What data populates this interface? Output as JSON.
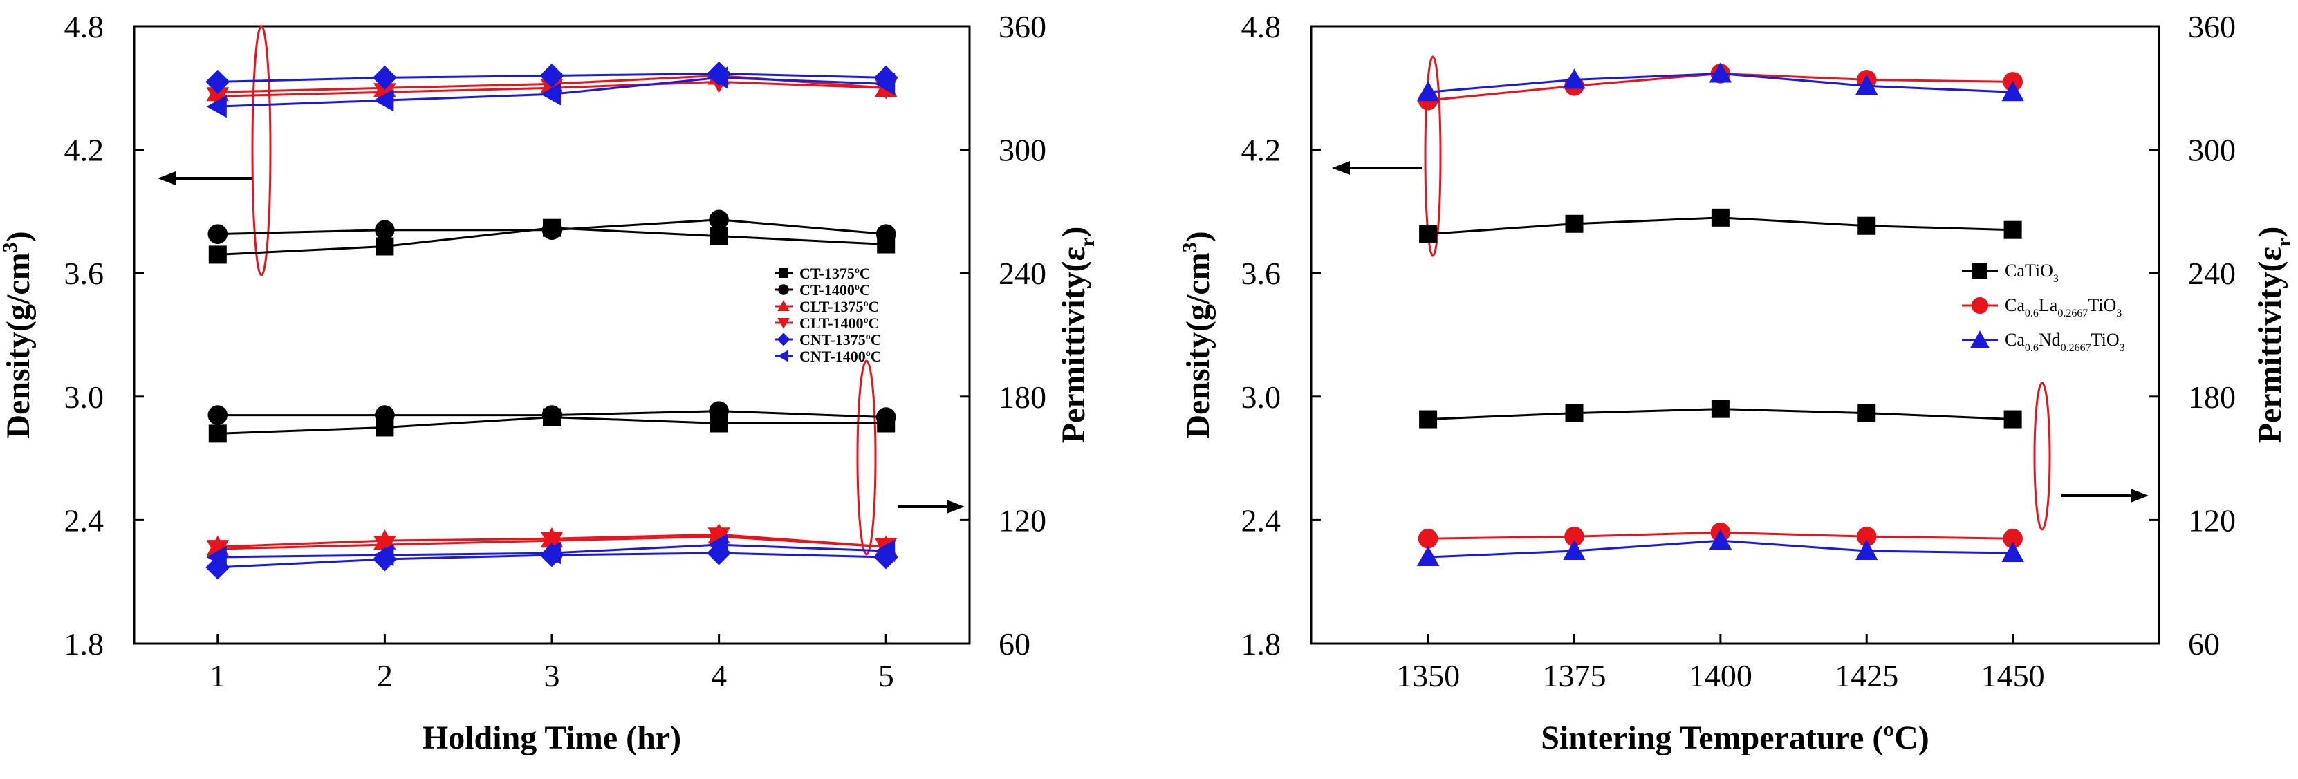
{
  "chart_data": [
    {
      "type": "line",
      "xlabel": "Holding Time (hr)",
      "ylabel_left": "Density(g/cm",
      "ylabel_left_sup": "3",
      "ylabel_left_close": ")",
      "ylabel_right": "Permittivity(ε",
      "ylabel_right_sub": "r",
      "ylabel_right_close": ")",
      "x": [
        1,
        2,
        3,
        4,
        5
      ],
      "xlim": [
        0.5,
        5.5
      ],
      "ylim_left": [
        1.8,
        4.8
      ],
      "ylim_right": [
        60,
        360
      ],
      "xticks": [
        "1",
        "2",
        "3",
        "4",
        "5"
      ],
      "yticks_left": [
        "1.8",
        "2.4",
        "3.0",
        "3.6",
        "4.2",
        "4.8"
      ],
      "yticks_right": [
        "60",
        "120",
        "180",
        "240",
        "300",
        "360"
      ],
      "legend_position": "center-right",
      "series": [
        {
          "name": "CT-1375°C",
          "name_main": "CT-1375",
          "name_sup": "o",
          "name_end": "C",
          "marker": "square",
          "color": "#000000",
          "density": [
            3.69,
            3.73,
            3.82,
            3.78,
            3.74
          ],
          "permittivity": [
            162,
            165,
            170,
            167,
            167
          ]
        },
        {
          "name": "CT-1400°C",
          "name_main": "CT-1400",
          "name_sup": "o",
          "name_end": "C",
          "marker": "circle",
          "color": "#000000",
          "density": [
            3.79,
            3.81,
            3.81,
            3.86,
            3.79
          ],
          "permittivity": [
            171,
            171,
            171,
            173,
            170
          ]
        },
        {
          "name": "CLT-1375°C",
          "name_main": "CLT-1375",
          "name_sup": "o",
          "name_end": "C",
          "marker": "triangle-up",
          "color": "#e8141c",
          "density": [
            4.48,
            4.5,
            4.52,
            4.56,
            4.5
          ],
          "permittivity": [
            107,
            110,
            111,
            113,
            107
          ]
        },
        {
          "name": "CLT-1400°C",
          "name_main": "CLT-1400",
          "name_sup": "o",
          "name_end": "C",
          "marker": "triangle-down",
          "color": "#e8141c",
          "density": [
            4.46,
            4.48,
            4.5,
            4.53,
            4.5
          ],
          "permittivity": [
            106,
            108,
            110,
            112,
            107
          ]
        },
        {
          "name": "CNT-1375°C",
          "name_main": "CNT-1375",
          "name_sup": "o",
          "name_end": "C",
          "marker": "diamond",
          "color": "#1a1adc",
          "density": [
            4.53,
            4.55,
            4.56,
            4.57,
            4.55
          ],
          "permittivity": [
            97,
            101,
            103,
            104,
            102
          ]
        },
        {
          "name": "CNT-1400°C",
          "name_main": "CNT-1400",
          "name_sup": "o",
          "name_end": "C",
          "marker": "triangle-left",
          "color": "#1a1adc",
          "density": [
            4.41,
            4.44,
            4.47,
            4.55,
            4.52
          ],
          "permittivity": [
            102,
            103,
            104,
            108,
            105
          ]
        }
      ]
    },
    {
      "type": "line",
      "xlabel": "Sintering Temperature (ºC)",
      "ylabel_left": "Density(g/cm",
      "ylabel_left_sup": "3",
      "ylabel_left_close": ")",
      "ylabel_right": "Permittivity(ε",
      "ylabel_right_sub": "r",
      "ylabel_right_close": ")",
      "x": [
        1350,
        1375,
        1400,
        1425,
        1450
      ],
      "xlim": [
        1330,
        1475
      ],
      "ylim_left": [
        1.8,
        4.8
      ],
      "ylim_right": [
        60,
        360
      ],
      "xticks": [
        "1350",
        "1375",
        "1400",
        "1425",
        "1450"
      ],
      "yticks_left": [
        "1.8",
        "2.4",
        "3.0",
        "3.6",
        "4.2",
        "4.8"
      ],
      "yticks_right": [
        "60",
        "120",
        "180",
        "240",
        "300",
        "360"
      ],
      "legend_position": "center-right",
      "series": [
        {
          "name": "CaTiO3",
          "parts": [
            [
              "CaTiO",
              "n"
            ],
            [
              "3",
              "sub"
            ]
          ],
          "marker": "square",
          "color": "#000000",
          "density": [
            3.79,
            3.84,
            3.87,
            3.83,
            3.81
          ],
          "permittivity": [
            169,
            172,
            174,
            172,
            169
          ]
        },
        {
          "name": "Ca0.6La0.2667TiO3",
          "parts": [
            [
              "Ca",
              "n"
            ],
            [
              "0.6",
              "sub"
            ],
            [
              "La",
              "n"
            ],
            [
              "0.2667",
              "sub"
            ],
            [
              "TiO",
              "n"
            ],
            [
              "3",
              "sub"
            ]
          ],
          "marker": "circle",
          "color": "#e8141c",
          "density": [
            4.44,
            4.51,
            4.57,
            4.54,
            4.53
          ],
          "permittivity": [
            111,
            112,
            114,
            112,
            111
          ]
        },
        {
          "name": "Ca0.6Nd0.2667TiO3",
          "parts": [
            [
              "Ca",
              "n"
            ],
            [
              "0.6",
              "sub"
            ],
            [
              "Nd",
              "n"
            ],
            [
              "0.2667",
              "sub"
            ],
            [
              "TiO",
              "n"
            ],
            [
              "3",
              "sub"
            ]
          ],
          "marker": "triangle-up",
          "color": "#1a1adc",
          "density": [
            4.48,
            4.54,
            4.57,
            4.51,
            4.48
          ],
          "permittivity": [
            102,
            105,
            110,
            105,
            104
          ]
        }
      ]
    }
  ]
}
